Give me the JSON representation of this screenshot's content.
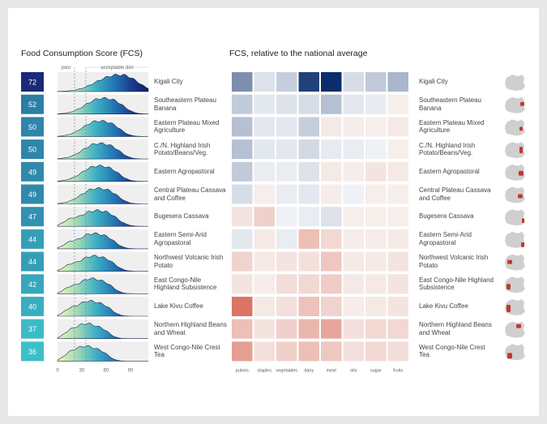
{
  "chart_data": [
    {
      "type": "ridgeline",
      "title": "Food Consumption Score (FCS)",
      "threshold_labels": [
        "poor",
        "acceptable diet"
      ],
      "x_ticks": [
        "0",
        "30",
        "60",
        "90"
      ],
      "xlim": [
        0,
        112
      ],
      "thresholds": [
        21,
        35
      ],
      "regions": [
        {
          "name": "Kigali City",
          "fcs": 72,
          "peak": 68,
          "spread": 22
        },
        {
          "name": "Southeastern Plateau Banana",
          "fcs": 52,
          "peak": 52,
          "spread": 18
        },
        {
          "name": "Eastern Plateau Mixed Agriculture",
          "fcs": 50,
          "peak": 48,
          "spread": 17
        },
        {
          "name": "C./N. Highland Irish Potato/Beans/Veg.",
          "fcs": 50,
          "peak": 48,
          "spread": 17
        },
        {
          "name": "Eastern Agropastoral",
          "fcs": 49,
          "peak": 47,
          "spread": 17
        },
        {
          "name": "Central Plateau Cassava and Coffee",
          "fcs": 49,
          "peak": 46,
          "spread": 17
        },
        {
          "name": "Bugesera Cassava",
          "fcs": 47,
          "peak": 44,
          "spread": 18
        },
        {
          "name": "Eastern Semi-Arid Agropastoral",
          "fcs": 44,
          "peak": 42,
          "spread": 16
        },
        {
          "name": "Northwest Volcanic Irish Potato",
          "fcs": 44,
          "peak": 42,
          "spread": 16
        },
        {
          "name": "East Congo-Nile Highland Subsistence",
          "fcs": 42,
          "peak": 40,
          "spread": 15
        },
        {
          "name": "Lake Kivu Coffee",
          "fcs": 40,
          "peak": 38,
          "spread": 15
        },
        {
          "name": "Northern Highland Beans and Wheat",
          "fcs": 37,
          "peak": 35,
          "spread": 14
        },
        {
          "name": "West Congo-Nile Crest Tea",
          "fcs": 36,
          "peak": 34,
          "spread": 14
        }
      ]
    },
    {
      "type": "heatmap",
      "title": "FCS, relative to the national average",
      "columns": [
        "pulses",
        "staples",
        "vegetables",
        "dairy",
        "meat",
        "oils",
        "sugar",
        "fruits"
      ],
      "rows": [
        "Kigali City",
        "Southeastern Plateau Banana",
        "Eastern Plateau Mixed Agriculture",
        "C./N. Highland Irish Potato/Beans/Veg.",
        "Eastern Agropastoral",
        "Central Plateau Cassava and Coffee",
        "Bugesera Cassava",
        "Eastern Semi-Arid Agropastoral",
        "Northwest Volcanic Irish Potato",
        "East Congo-Nile Highland Subsistence",
        "Lake Kivu Coffee",
        "Northern Highland Beans and Wheat",
        "West Congo-Nile Crest Tea"
      ],
      "values": [
        [
          0.5,
          0.08,
          0.18,
          0.9,
          1.0,
          0.1,
          0.2,
          0.3
        ],
        [
          0.2,
          0.05,
          0.08,
          0.1,
          0.25,
          0.05,
          0.03,
          -0.02
        ],
        [
          0.25,
          0.05,
          0.05,
          0.18,
          -0.05,
          -0.03,
          -0.02,
          -0.05
        ],
        [
          0.25,
          0.05,
          0.05,
          0.12,
          0.03,
          0.02,
          0.0,
          -0.02
        ],
        [
          0.2,
          0.02,
          0.02,
          0.08,
          -0.05,
          -0.03,
          -0.08,
          -0.05
        ],
        [
          0.1,
          -0.02,
          0.02,
          0.05,
          -0.03,
          0.0,
          -0.02,
          -0.02
        ],
        [
          -0.08,
          -0.2,
          0.0,
          0.02,
          0.08,
          -0.02,
          -0.02,
          -0.02
        ],
        [
          0.05,
          -0.05,
          0.02,
          -0.3,
          -0.15,
          -0.03,
          -0.03,
          -0.05
        ],
        [
          -0.18,
          -0.05,
          -0.08,
          -0.1,
          -0.25,
          -0.05,
          -0.05,
          -0.08
        ],
        [
          -0.08,
          -0.03,
          -0.12,
          -0.15,
          -0.22,
          -0.05,
          -0.05,
          -0.08
        ],
        [
          -0.75,
          -0.05,
          -0.1,
          -0.28,
          -0.18,
          -0.03,
          -0.05,
          -0.08
        ],
        [
          -0.3,
          -0.08,
          -0.2,
          -0.35,
          -0.45,
          -0.1,
          -0.15,
          -0.15
        ],
        [
          -0.5,
          -0.1,
          -0.2,
          -0.3,
          -0.25,
          -0.1,
          -0.15,
          -0.12
        ]
      ]
    }
  ],
  "colors": {
    "score_scale": [
      "#3dbfc8",
      "#1a2a7a"
    ],
    "positive": "#0b2d6b",
    "negative": "#d24a35",
    "neutral": "#f3f3f3",
    "map_base": "#cfcfcf",
    "map_highlight": "#c0392b"
  },
  "icons": {
    "map": "rwanda-region-map-icon"
  }
}
